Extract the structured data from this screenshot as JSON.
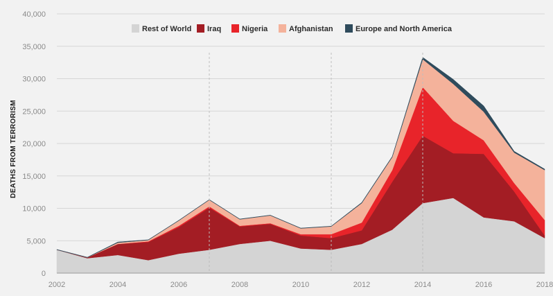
{
  "chart_data": {
    "type": "area",
    "stacked": true,
    "ylabel": "DEATHS FROM TERRORISM",
    "xlabel": "",
    "title": "",
    "x": [
      2002,
      2003,
      2004,
      2005,
      2006,
      2007,
      2008,
      2009,
      2010,
      2011,
      2012,
      2013,
      2014,
      2015,
      2016,
      2017,
      2018
    ],
    "xticks": [
      "2002",
      "2004",
      "2006",
      "2008",
      "2010",
      "2012",
      "2014",
      "2016",
      "2018"
    ],
    "yticks": [
      "0",
      "5,000",
      "10,000",
      "15,000",
      "20,000",
      "25,000",
      "30,000",
      "35,000",
      "40,000"
    ],
    "ylim": [
      0,
      40000
    ],
    "grid": "horizontal",
    "legend_position": "top-center",
    "reference_lines_x": [
      2007,
      2011,
      2014
    ],
    "series": [
      {
        "name": "Rest of World",
        "color": "#d4d4d4",
        "values": [
          3600,
          2300,
          2800,
          2000,
          3000,
          3600,
          4500,
          5000,
          3800,
          3600,
          4500,
          6700,
          10800,
          11600,
          8600,
          8000,
          5400
        ]
      },
      {
        "name": "Iraq",
        "color": "#a31d24",
        "values": [
          0,
          100,
          1700,
          2800,
          4100,
          6500,
          2700,
          2600,
          2000,
          1800,
          2100,
          7400,
          10400,
          6900,
          9800,
          4600,
          400
        ]
      },
      {
        "name": "Nigeria",
        "color": "#e8242a",
        "values": [
          0,
          0,
          0,
          100,
          200,
          200,
          100,
          100,
          200,
          600,
          1200,
          1800,
          7500,
          5000,
          2100,
          1300,
          2400
        ]
      },
      {
        "name": "Afghanistan",
        "color": "#f4b29b",
        "values": [
          0,
          0,
          200,
          200,
          800,
          1000,
          1000,
          1200,
          900,
          1200,
          3000,
          2000,
          4300,
          5700,
          4400,
          4700,
          7700
        ]
      },
      {
        "name": "Europe and North America",
        "color": "#2f4b5c",
        "values": [
          50,
          50,
          100,
          50,
          50,
          50,
          50,
          50,
          50,
          50,
          100,
          100,
          300,
          700,
          900,
          200,
          150
        ]
      }
    ]
  }
}
